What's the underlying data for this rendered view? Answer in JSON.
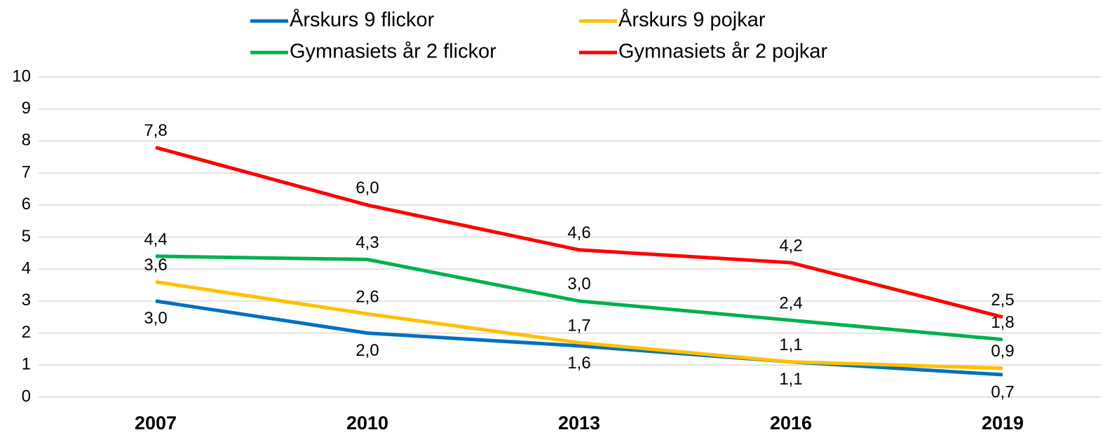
{
  "chart_data": {
    "type": "line",
    "categories": [
      "2007",
      "2010",
      "2013",
      "2016",
      "2019"
    ],
    "series": [
      {
        "name": "Årskurs 9 flickor",
        "color": "#0070c0",
        "values": [
          3.0,
          2.0,
          1.6,
          1.1,
          0.7
        ],
        "value_labels": [
          "3,0",
          "2,0",
          "1,6",
          "1,1",
          "0,7"
        ]
      },
      {
        "name": "Årskurs 9 pojkar",
        "color": "#ffc000",
        "values": [
          3.6,
          2.6,
          1.7,
          1.1,
          0.9
        ],
        "value_labels": [
          "3,6",
          "2,6",
          "1,7",
          "1,1",
          "0,9"
        ]
      },
      {
        "name": "Gymnasiets år 2 flickor",
        "color": "#00b050",
        "values": [
          4.4,
          4.3,
          3.0,
          2.4,
          1.8
        ],
        "value_labels": [
          "4,4",
          "4,3",
          "3,0",
          "2,4",
          "1,8"
        ]
      },
      {
        "name": "Gymnasiets år 2 pojkar",
        "color": "#ff0000",
        "values": [
          7.8,
          6.0,
          4.6,
          4.2,
          2.5
        ],
        "value_labels": [
          "7,8",
          "6,0",
          "4,6",
          "4,2",
          "2,5"
        ]
      }
    ],
    "ylim": [
      0,
      10
    ],
    "yticks": [
      0,
      1,
      2,
      3,
      4,
      5,
      6,
      7,
      8,
      9,
      10
    ],
    "grid": true
  }
}
